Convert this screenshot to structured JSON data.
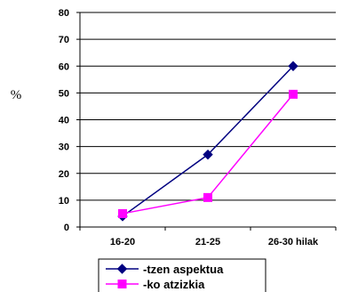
{
  "chart_data": {
    "type": "line",
    "categories": [
      "16-20",
      "21-25",
      "26-30 hilak"
    ],
    "series": [
      {
        "name": "-tzen aspektua",
        "values": [
          4,
          27,
          60
        ],
        "color": "#000080",
        "marker": "diamond"
      },
      {
        "name": "-ko atzizkia",
        "values": [
          5,
          11,
          49.5
        ],
        "color": "#ff00ff",
        "marker": "square"
      }
    ],
    "ylabel": "%",
    "ylim": [
      0,
      80
    ],
    "yticks": [
      0,
      10,
      20,
      30,
      40,
      50,
      60,
      70,
      80
    ],
    "grid": true,
    "legend": "bottom"
  }
}
